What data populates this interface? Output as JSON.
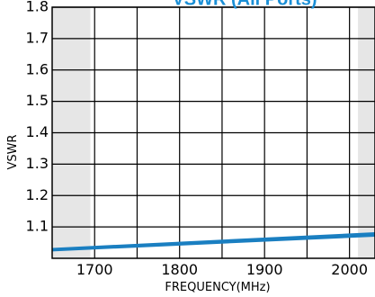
{
  "chart_data": {
    "type": "line",
    "title": "VSWR (All Ports)",
    "xlabel": "FREQUENCY(MHz)",
    "ylabel": "VSWR",
    "x_ticks": [
      "1700",
      "1800",
      "1900",
      "2000"
    ],
    "y_ticks": [
      "1.8",
      "1.7",
      "1.6",
      "1.5",
      "1.4",
      "1.3",
      "1.2",
      "1.1"
    ],
    "xlim": [
      1650,
      2030
    ],
    "ylim": [
      1.0,
      1.8
    ],
    "grid": true,
    "shaded_x_ranges": [
      [
        1650,
        1695
      ],
      [
        2010,
        2030
      ]
    ],
    "series": [
      {
        "x": [
          1650,
          2030
        ],
        "y": [
          1.03,
          1.08
        ]
      },
      {
        "x": [
          1650,
          2030
        ],
        "y": [
          1.025,
          1.072
        ]
      },
      {
        "x": [
          1650,
          2030
        ],
        "y": [
          1.028,
          1.076
        ]
      }
    ],
    "colors": {
      "line": "#1a7fc1",
      "shade": "#e6e6e6",
      "grid": "#000000",
      "title": "#1a8fd6"
    }
  }
}
